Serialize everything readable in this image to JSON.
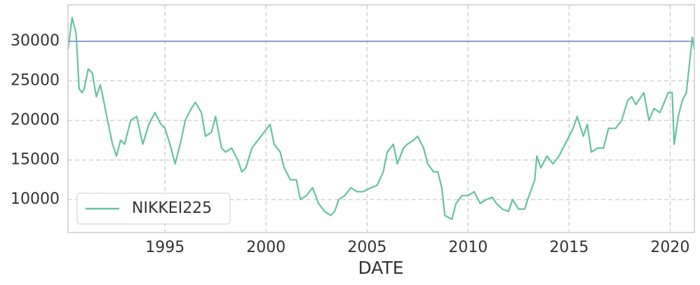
{
  "chart_data": {
    "type": "line",
    "x_label": "DATE",
    "x": [
      1990.2,
      1990.4,
      1990.6,
      1990.75,
      1990.9,
      1991.0,
      1991.2,
      1991.4,
      1991.6,
      1991.8,
      1992.0,
      1992.2,
      1992.4,
      1992.6,
      1992.8,
      1993.0,
      1993.3,
      1993.6,
      1993.9,
      1994.2,
      1994.5,
      1994.8,
      1995.0,
      1995.3,
      1995.5,
      1995.8,
      1996.0,
      1996.3,
      1996.5,
      1996.8,
      1997.0,
      1997.3,
      1997.5,
      1997.8,
      1998.0,
      1998.3,
      1998.6,
      1998.8,
      1999.0,
      1999.3,
      1999.6,
      1999.9,
      2000.2,
      2000.4,
      2000.7,
      2000.9,
      2001.2,
      2001.5,
      2001.7,
      2002.0,
      2002.3,
      2002.6,
      2002.9,
      2003.2,
      2003.4,
      2003.6,
      2003.9,
      2004.2,
      2004.5,
      2004.8,
      2005.2,
      2005.5,
      2005.8,
      2006.0,
      2006.3,
      2006.5,
      2006.8,
      2007.0,
      2007.3,
      2007.5,
      2007.8,
      2008.0,
      2008.3,
      2008.5,
      2008.7,
      2008.85,
      2009.2,
      2009.4,
      2009.7,
      2010.0,
      2010.3,
      2010.6,
      2010.9,
      2011.2,
      2011.4,
      2011.7,
      2012.0,
      2012.2,
      2012.5,
      2012.8,
      2012.95,
      2013.3,
      2013.4,
      2013.6,
      2013.9,
      2014.2,
      2014.5,
      2014.9,
      2015.2,
      2015.4,
      2015.7,
      2015.9,
      2016.1,
      2016.4,
      2016.7,
      2016.95,
      2017.3,
      2017.6,
      2017.9,
      2018.1,
      2018.3,
      2018.7,
      2018.95,
      2019.2,
      2019.5,
      2019.9,
      2020.1,
      2020.2,
      2020.4,
      2020.6,
      2020.8,
      2020.95,
      2021.1,
      2021.2
    ],
    "series": [
      {
        "name": "NIKKEI225",
        "color": "#66c2a5",
        "values": [
          29000,
          33000,
          31000,
          24000,
          23500,
          24000,
          26500,
          26000,
          23000,
          24500,
          22000,
          19500,
          17000,
          15500,
          17500,
          17000,
          20000,
          20500,
          17000,
          19500,
          21000,
          19500,
          19000,
          16500,
          14500,
          17500,
          20000,
          21500,
          22300,
          21000,
          18000,
          18500,
          20500,
          16500,
          16000,
          16500,
          15000,
          13500,
          14000,
          16500,
          17500,
          18500,
          19500,
          17000,
          16000,
          14000,
          12500,
          12500,
          10000,
          10500,
          11500,
          9500,
          8500,
          8000,
          8500,
          10000,
          10500,
          11500,
          11000,
          11000,
          11500,
          11800,
          13500,
          16000,
          17000,
          14500,
          16500,
          17000,
          17500,
          18000,
          16500,
          14500,
          13500,
          13500,
          11500,
          8000,
          7500,
          9500,
          10500,
          10500,
          11000,
          9500,
          10000,
          10300,
          9500,
          8800,
          8500,
          10000,
          8800,
          8800,
          10000,
          12500,
          15500,
          14000,
          15500,
          14500,
          15500,
          17500,
          19000,
          20500,
          18000,
          19500,
          16000,
          16500,
          16500,
          19000,
          19000,
          20000,
          22500,
          23000,
          22000,
          23500,
          20000,
          21500,
          21000,
          23500,
          23500,
          17000,
          20500,
          22500,
          23500,
          27000,
          30500,
          29000
        ]
      }
    ],
    "reference_line": {
      "value": 30000,
      "color": "#8da0cb"
    },
    "xlim": [
      1990.2,
      2021.2
    ],
    "xticks": [
      1995,
      2000,
      2005,
      2010,
      2015,
      2020
    ],
    "ylim": [
      5840,
      34600
    ],
    "yticks": [
      10000,
      15000,
      20000,
      25000,
      30000
    ],
    "grid": true,
    "legend": "lower left"
  }
}
